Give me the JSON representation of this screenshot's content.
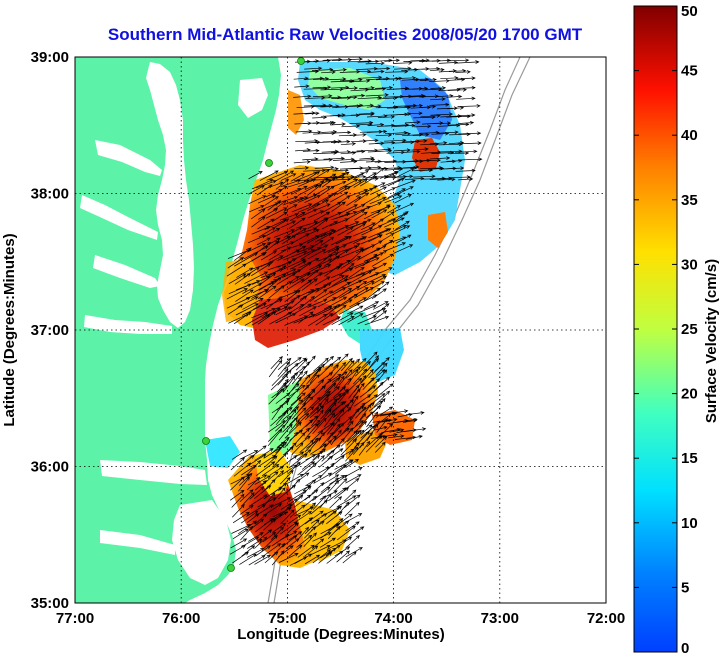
{
  "title": "Southern Mid-Atlantic Raw Velocities 2008/05/20 1700 GMT",
  "title_color": "#1010e0",
  "map": {
    "xlabel": "Longitude (Degrees:Minutes)",
    "ylabel": "Latitude (Degrees:Minutes)",
    "xticks": [
      {
        "value": -77,
        "label": "77:00"
      },
      {
        "value": -76,
        "label": "76:00"
      },
      {
        "value": -75,
        "label": "75:00"
      },
      {
        "value": -74,
        "label": "74:00"
      },
      {
        "value": -73,
        "label": "73:00"
      },
      {
        "value": -72,
        "label": "72:00"
      }
    ],
    "yticks": [
      {
        "value": 35,
        "label": "35:00"
      },
      {
        "value": 36,
        "label": "36:00"
      },
      {
        "value": 37,
        "label": "37:00"
      },
      {
        "value": 38,
        "label": "38:00"
      },
      {
        "value": 39,
        "label": "39:00"
      }
    ],
    "lon_range": [
      -77,
      -72
    ],
    "lat_range": [
      35,
      39
    ],
    "grid": "dotted",
    "land_color": "#5cf2a8",
    "radar_site_color": "#3cd23c"
  },
  "colorbar": {
    "label": "Surface Velocity (cm/s)",
    "range": [
      0,
      50
    ],
    "ticks": [
      {
        "value": 0,
        "label": "0"
      },
      {
        "value": 5,
        "label": "5"
      },
      {
        "value": 10,
        "label": "10"
      },
      {
        "value": 15,
        "label": "15"
      },
      {
        "value": 20,
        "label": "20"
      },
      {
        "value": 25,
        "label": "25"
      },
      {
        "value": 30,
        "label": "30"
      },
      {
        "value": 35,
        "label": "35"
      },
      {
        "value": 40,
        "label": "40"
      },
      {
        "value": 45,
        "label": "45"
      },
      {
        "value": 50,
        "label": "50"
      }
    ]
  }
}
